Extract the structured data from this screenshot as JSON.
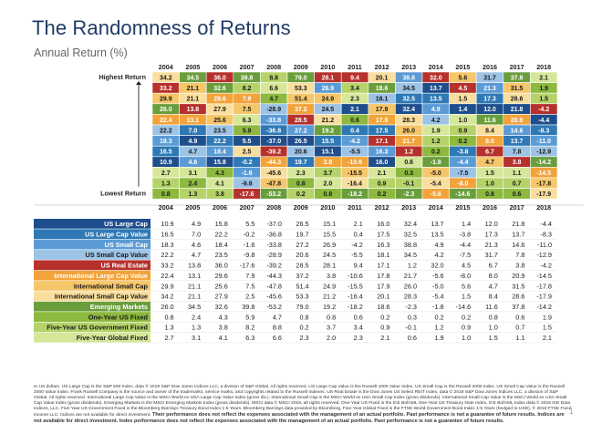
{
  "title": "The Randomness of Returns",
  "subtitle": "Annual Return (%)",
  "highest_label": "Highest Return",
  "lowest_label": "Lowest Return",
  "footnote": "In US dollars. US Large Cap is the S&P 500 Index, data © 2019 S&P Dow Jones Indices LLC, a division of S&P Global. All rights reserved. US Large Cap Value is the Russell 1000 Value Index. US Small Cap is the Russell 2000 Index. US Small Cap Value is the Russell 2000 Value Index. Frank Russell Company is the source and owner of the trademarks, service marks, and copyrights related to the Russell Indexes. US Real Estate is the Dow Jones US Select REIT Index, data © 2019 S&P Dow Jones Indices LLC, a division of S&P Global. All rights reserved. International Large Cap Value is the MSCI World ex USA Large Cap Value Index (gross div.). International Small Cap is the MSCI World ex USA Small Cap Index (gross dividends). International Small Cap Value is the MSCI World ex USA Small Cap Value Index (gross dividends). Emerging Markets is the MSCI Emerging Markets Index (gross dividends). MSCI data © MSCI 2019, all rights reserved. One-Year US Fixed is the ICE BofAML One-Year US Treasury Note Index, ICE BofAML Index data © 2019 ICE Data Indices, LLC. Five-Year US Government Fixed is the Bloomberg Barclays Treasury Bond Index 1-5 Years. Bloomberg Barclays data provided by Bloomberg. Five-Year Global Fixed is the FTSE World Government Bond Index 1-5 Years (hedged to USD), © 2019 FTSE Fixed Income LLC. Indices are not available for direct investment.",
  "footnote_bold": "Their performance does not reflect the expenses associated with the management of an actual portfolio. Past performance is not a guarantee of future results. Indices are not available for direct investment. Index performance does not reflect the expenses associated with the management of an actual portfolio. Past performance is not a guarantee of future results.",
  "page_number": "1",
  "colors": {
    "US Large Cap": "#1f4e8c",
    "US Large Cap Value": "#2e79b5",
    "US Small Cap": "#5b9bd5",
    "US Small Cap Value": "#9dc3e6",
    "US Real Estate": "#b7312c",
    "International Large Cap Value": "#f2a33a",
    "International Small Cap": "#f6c76a",
    "International Small Cap Value": "#f9de9e",
    "Emerging Markets": "#6a9e3c",
    "One-Year US Fixed": "#8db93f",
    "Five-Year US Government Fixed": "#b6d36a",
    "Five-Year Global Fixed": "#d6e79a"
  },
  "chart_data": {
    "type": "table",
    "years": [
      "2004",
      "2005",
      "2006",
      "2007",
      "2008",
      "2009",
      "2010",
      "2011",
      "2012",
      "2013",
      "2014",
      "2015",
      "2016",
      "2017",
      "2018"
    ],
    "series": [
      {
        "name": "US Large Cap",
        "values": [
          10.9,
          4.9,
          15.8,
          5.5,
          -37.0,
          26.5,
          15.1,
          2.1,
          16.0,
          32.4,
          13.7,
          1.4,
          12.0,
          21.8,
          -4.4
        ]
      },
      {
        "name": "US Large Cap Value",
        "values": [
          16.5,
          7.0,
          22.2,
          -0.2,
          -36.8,
          19.7,
          15.5,
          0.4,
          17.5,
          32.5,
          13.5,
          -3.8,
          17.3,
          13.7,
          -8.3
        ]
      },
      {
        "name": "US Small Cap",
        "values": [
          18.3,
          4.6,
          18.4,
          -1.6,
          -33.8,
          27.2,
          26.9,
          -4.2,
          16.3,
          38.8,
          4.9,
          -4.4,
          21.3,
          14.6,
          -11.0
        ]
      },
      {
        "name": "US Small Cap Value",
        "values": [
          22.2,
          4.7,
          23.5,
          -9.8,
          -28.9,
          20.6,
          24.5,
          -5.5,
          18.1,
          34.5,
          4.2,
          -7.5,
          31.7,
          7.8,
          -12.9
        ]
      },
      {
        "name": "US Real Estate",
        "values": [
          33.2,
          13.8,
          36.0,
          -17.6,
          -39.2,
          28.5,
          28.1,
          9.4,
          17.1,
          1.2,
          32.0,
          4.5,
          6.7,
          3.8,
          -4.2
        ]
      },
      {
        "name": "International Large Cap Value",
        "values": [
          22.4,
          13.1,
          29.6,
          7.9,
          -44.3,
          37.2,
          3.8,
          -10.6,
          17.8,
          21.7,
          -5.6,
          -8.0,
          8.0,
          20.9,
          -14.5
        ]
      },
      {
        "name": "International Small Cap",
        "values": [
          29.9,
          21.1,
          25.6,
          7.5,
          -47.8,
          51.4,
          24.9,
          -15.5,
          17.9,
          26.0,
          -5.0,
          5.6,
          4.7,
          31.5,
          -17.8
        ]
      },
      {
        "name": "International Small Cap Value",
        "values": [
          34.2,
          21.1,
          27.9,
          2.5,
          -45.6,
          53.3,
          21.2,
          -16.4,
          20.1,
          28.3,
          -5.4,
          1.5,
          8.4,
          28.6,
          -17.9
        ]
      },
      {
        "name": "Emerging Markets",
        "values": [
          26.0,
          34.5,
          32.6,
          39.8,
          -53.2,
          79.0,
          19.2,
          -18.2,
          18.6,
          -2.3,
          -1.8,
          -14.6,
          11.6,
          37.8,
          -14.2
        ]
      },
      {
        "name": "One-Year US Fixed",
        "values": [
          0.8,
          2.4,
          4.3,
          5.9,
          4.7,
          0.8,
          0.8,
          0.6,
          0.2,
          0.3,
          0.2,
          0.2,
          0.8,
          0.6,
          1.9
        ]
      },
      {
        "name": "Five-Year US Government Fixed",
        "values": [
          1.3,
          1.3,
          3.8,
          8.2,
          8.8,
          0.2,
          3.7,
          3.4,
          0.9,
          -0.1,
          1.2,
          0.9,
          1.0,
          0.7,
          1.5
        ]
      },
      {
        "name": "Five-Year Global Fixed",
        "values": [
          2.7,
          3.1,
          4.1,
          6.3,
          6.6,
          2.3,
          2.0,
          2.3,
          2.1,
          0.6,
          1.9,
          1.0,
          1.5,
          1.1,
          2.1
        ]
      }
    ]
  }
}
